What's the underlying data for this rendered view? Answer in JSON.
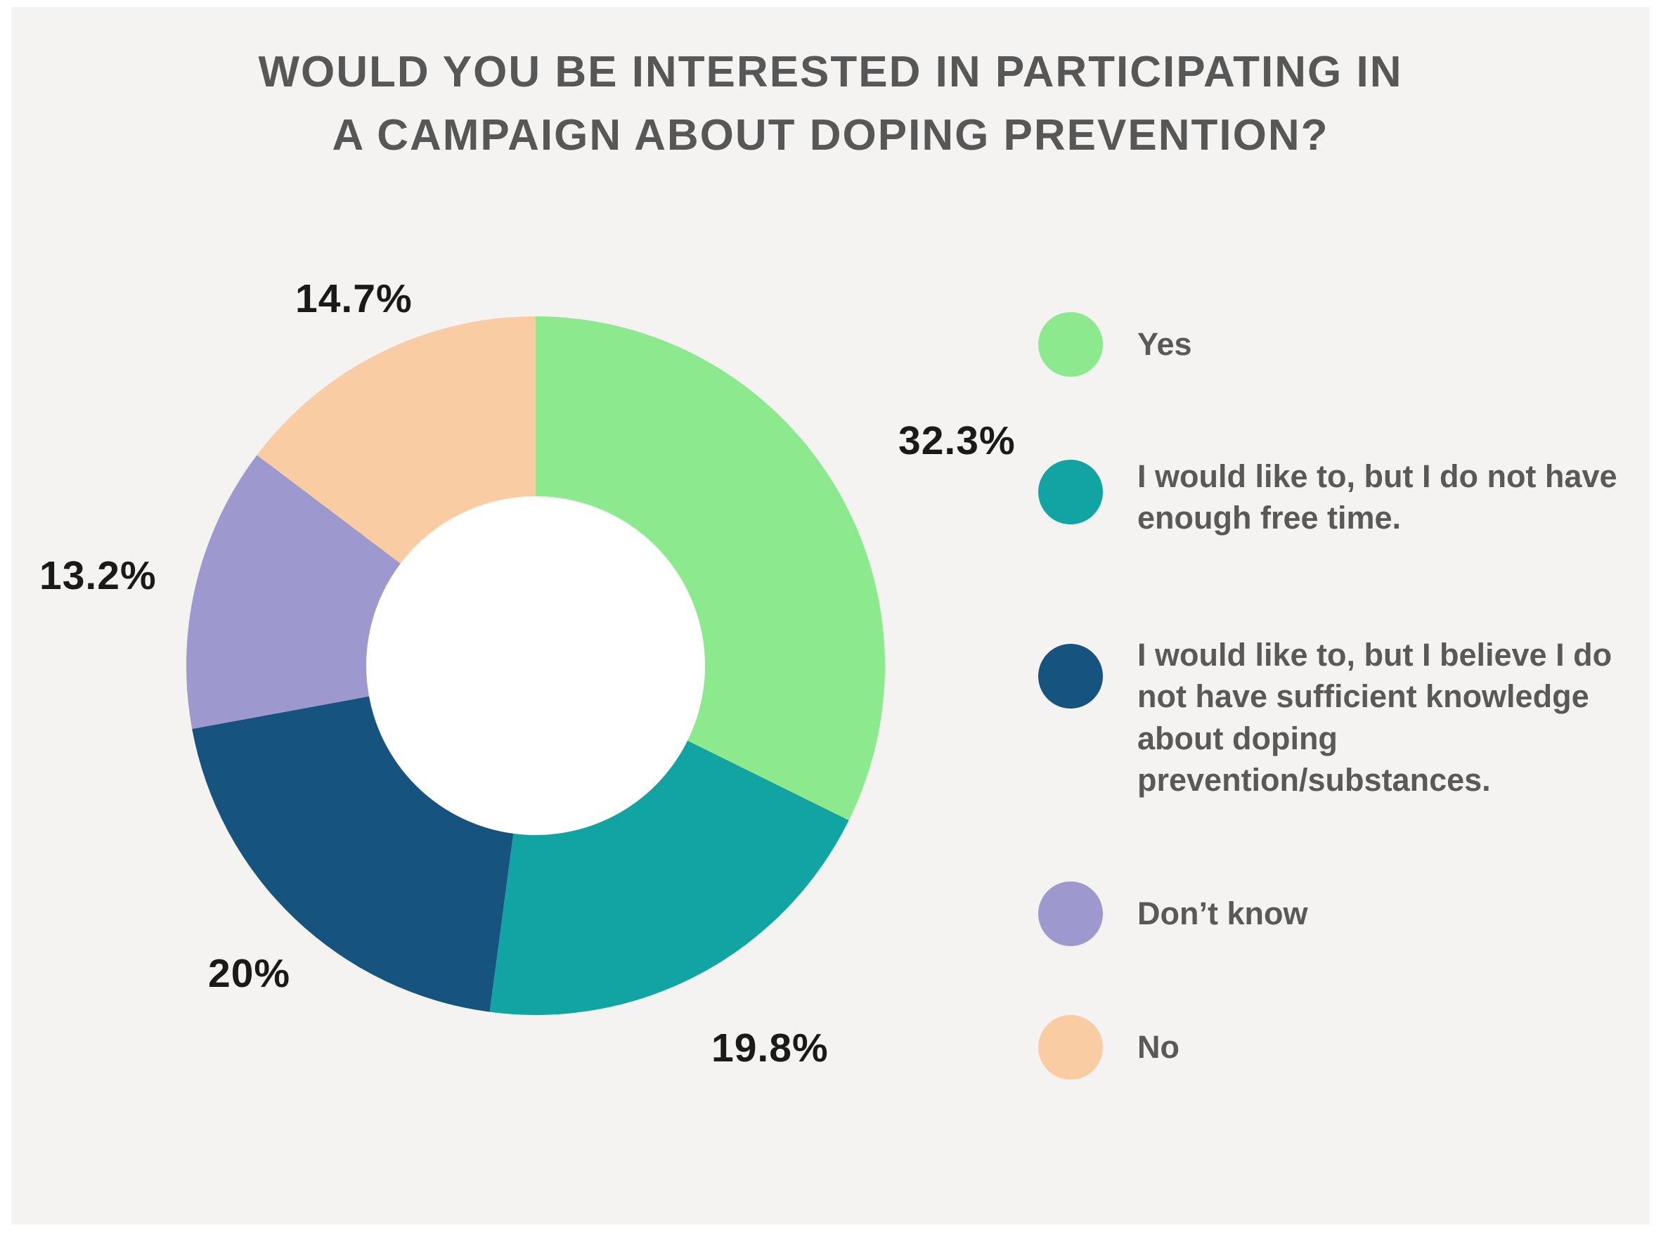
{
  "title": {
    "line1": "WOULD YOU BE INTERESTED IN PARTICIPATING IN",
    "line2": "A CAMPAIGN ABOUT DOPING PREVENTION?"
  },
  "chart_data": {
    "type": "pie",
    "donut": true,
    "title": "WOULD YOU BE INTERESTED IN PARTICIPATING IN A CAMPAIGN ABOUT DOPING PREVENTION?",
    "start_angle_deg": 0,
    "direction": "clockwise",
    "legend_position": "right",
    "slices": [
      {
        "label": "Yes",
        "value": 32.3,
        "display": "32.3%",
        "color": "#8DE98D"
      },
      {
        "label": "I would like to, but I do not have enough free time.",
        "value": 19.8,
        "display": "19.8%",
        "color": "#12A3A3"
      },
      {
        "label": "I would like to, but I believe I do not have sufficient knowledge about doping prevention/substances.",
        "value": 20,
        "display": "20%",
        "color": "#17537F"
      },
      {
        "label": "Don’t know",
        "value": 13.2,
        "display": "13.2%",
        "color": "#9D99CE"
      },
      {
        "label": "No",
        "value": 14.7,
        "display": "14.7%",
        "color": "#F9CCA4"
      }
    ]
  },
  "colors": {
    "page_border": "#FFFFFF",
    "background": "#F4F3F2",
    "title_text": "#575757",
    "percent_label_text": "#1A1A1A",
    "legend_text": "#595959",
    "donut_hole": "#FFFFFF"
  }
}
